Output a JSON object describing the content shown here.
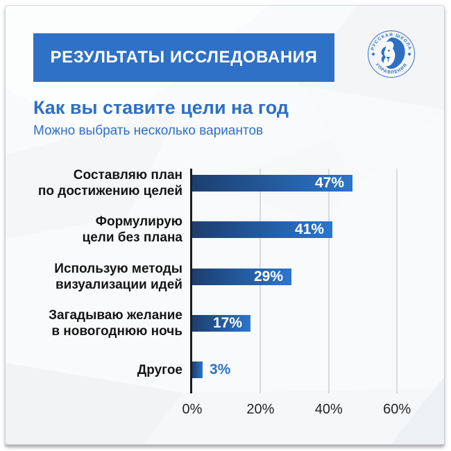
{
  "header": {
    "banner_title": "РЕЗУЛЬТАТЫ ИССЛЕДОВАНИЯ"
  },
  "logo": {
    "top_text": "РУССКАЯ ШКОЛА",
    "bottom_text": "УПРАВЛЕНИЯ"
  },
  "title": "Как вы ставите цели на год",
  "subtitle": "Можно выбрать несколько вариантов",
  "chart_data": {
    "type": "bar",
    "orientation": "horizontal",
    "title": "Как вы ставите цели на год",
    "subtitle": "Можно выбрать несколько вариантов",
    "categories": [
      [
        "Составляю план",
        "по достижению целей"
      ],
      [
        "Формулирую",
        "цели без плана"
      ],
      [
        "Использую методы",
        "визуализации идей"
      ],
      [
        "Загадываю желание",
        "в новогоднюю ночь"
      ],
      [
        "Другое"
      ]
    ],
    "values": [
      47,
      41,
      29,
      17,
      3
    ],
    "value_labels": [
      "47%",
      "41%",
      "29%",
      "17%",
      "3%"
    ],
    "x_ticks": [
      {
        "label": "0%",
        "value": 0
      },
      {
        "label": "20%",
        "value": 20
      },
      {
        "label": "40%",
        "value": 40
      },
      {
        "label": "60%",
        "value": 60
      }
    ],
    "xlim": [
      0,
      60
    ],
    "grid": true,
    "legend": false
  },
  "colors": {
    "accent_blue": "#2e71c6",
    "banner_bg": "#2e71c6",
    "banner_text": "#ffffff",
    "title_text": "#2e6fc4",
    "bar_gradient_dark": "#1d3e6e",
    "bar_gradient_light": "#2b76cd",
    "bar_value_inside": "#ffffff",
    "bar_value_outside": "#2e71c6",
    "category_text": "#151515",
    "axis_line": "#1c1c1c",
    "gridline": "#d8dadc",
    "tick_text": "#222222",
    "card_bg": "#f9fafb"
  }
}
